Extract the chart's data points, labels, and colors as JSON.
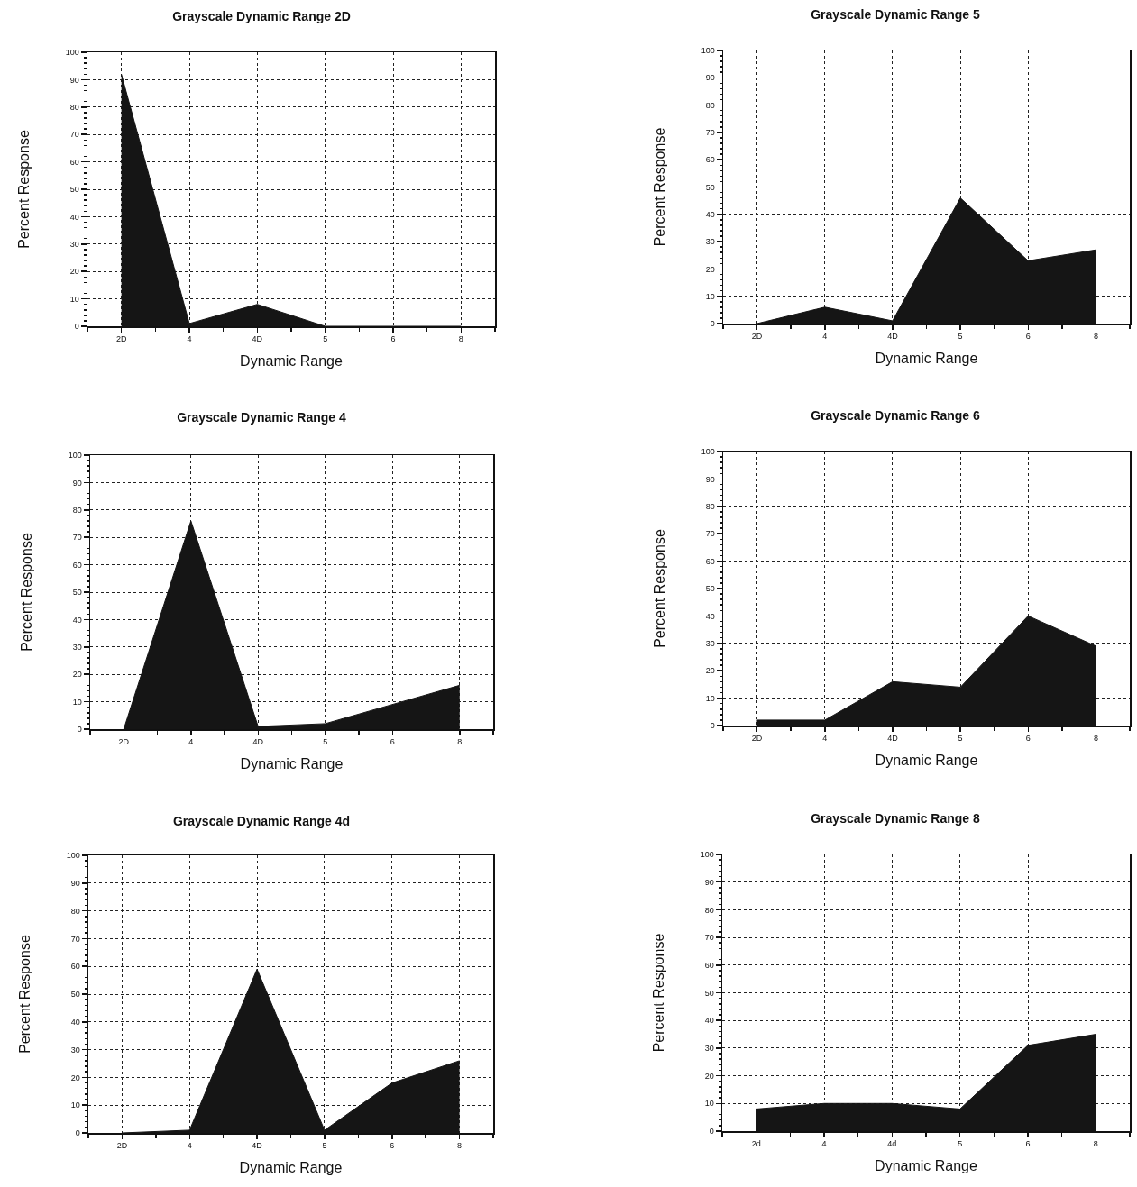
{
  "chart_data": [
    {
      "type": "area",
      "title": "Grayscale Dynamic Range 2D",
      "xlabel": "Dynamic Range",
      "ylabel": "Percent Response",
      "categories": [
        "2D",
        "4",
        "4D",
        "5",
        "6",
        "8"
      ],
      "values": [
        92,
        1,
        8,
        0,
        0,
        0
      ],
      "color": "#151515",
      "ylim": [
        0,
        100
      ],
      "yticks": [
        0,
        10,
        20,
        30,
        40,
        50,
        60,
        70,
        80,
        90,
        100
      ],
      "grid": true
    },
    {
      "type": "area",
      "title": "Grayscale Dynamic Range 5",
      "xlabel": "Dynamic Range",
      "ylabel": "Percent Response",
      "categories": [
        "2D",
        "4",
        "4D",
        "5",
        "6",
        "8"
      ],
      "values": [
        0,
        6,
        1,
        46,
        23,
        27
      ],
      "color": "#151515",
      "ylim": [
        0,
        100
      ],
      "yticks": [
        0,
        10,
        20,
        30,
        40,
        50,
        60,
        70,
        80,
        90,
        100
      ],
      "grid": true
    },
    {
      "type": "area",
      "title": "Grayscale Dynamic Range 4",
      "xlabel": "Dynamic Range",
      "ylabel": "Percent Response",
      "categories": [
        "2D",
        "4",
        "4D",
        "5",
        "6",
        "8"
      ],
      "values": [
        0,
        76,
        1,
        2,
        9,
        16
      ],
      "color": "#151515",
      "ylim": [
        0,
        100
      ],
      "yticks": [
        0,
        10,
        20,
        30,
        40,
        50,
        60,
        70,
        80,
        90,
        100
      ],
      "grid": true
    },
    {
      "type": "area",
      "title": "Grayscale Dynamic Range 6",
      "xlabel": "Dynamic Range",
      "ylabel": "Percent Response",
      "categories": [
        "2D",
        "4",
        "4D",
        "5",
        "6",
        "8"
      ],
      "values": [
        2,
        2,
        16,
        14,
        40,
        29
      ],
      "color": "#151515",
      "ylim": [
        0,
        100
      ],
      "yticks": [
        0,
        10,
        20,
        30,
        40,
        50,
        60,
        70,
        80,
        90,
        100
      ],
      "grid": true
    },
    {
      "type": "area",
      "title": "Grayscale Dynamic Range 4d",
      "xlabel": "Dynamic Range",
      "ylabel": "Percent Response",
      "categories": [
        "2D",
        "4",
        "4D",
        "5",
        "6",
        "8"
      ],
      "values": [
        0,
        1,
        59,
        1,
        18,
        26
      ],
      "color": "#151515",
      "ylim": [
        0,
        100
      ],
      "yticks": [
        0,
        10,
        20,
        30,
        40,
        50,
        60,
        70,
        80,
        90,
        100
      ],
      "grid": true
    },
    {
      "type": "area",
      "title": "Grayscale Dynamic Range 8",
      "xlabel": "Dynamic Range",
      "ylabel": "Percent Response",
      "categories": [
        "2d",
        "4",
        "4d",
        "5",
        "6",
        "8"
      ],
      "values": [
        8,
        10,
        10,
        8,
        31,
        35
      ],
      "color": "#151515",
      "ylim": [
        0,
        100
      ],
      "yticks": [
        0,
        10,
        20,
        30,
        40,
        50,
        60,
        70,
        80,
        90,
        100
      ],
      "grid": true
    }
  ]
}
